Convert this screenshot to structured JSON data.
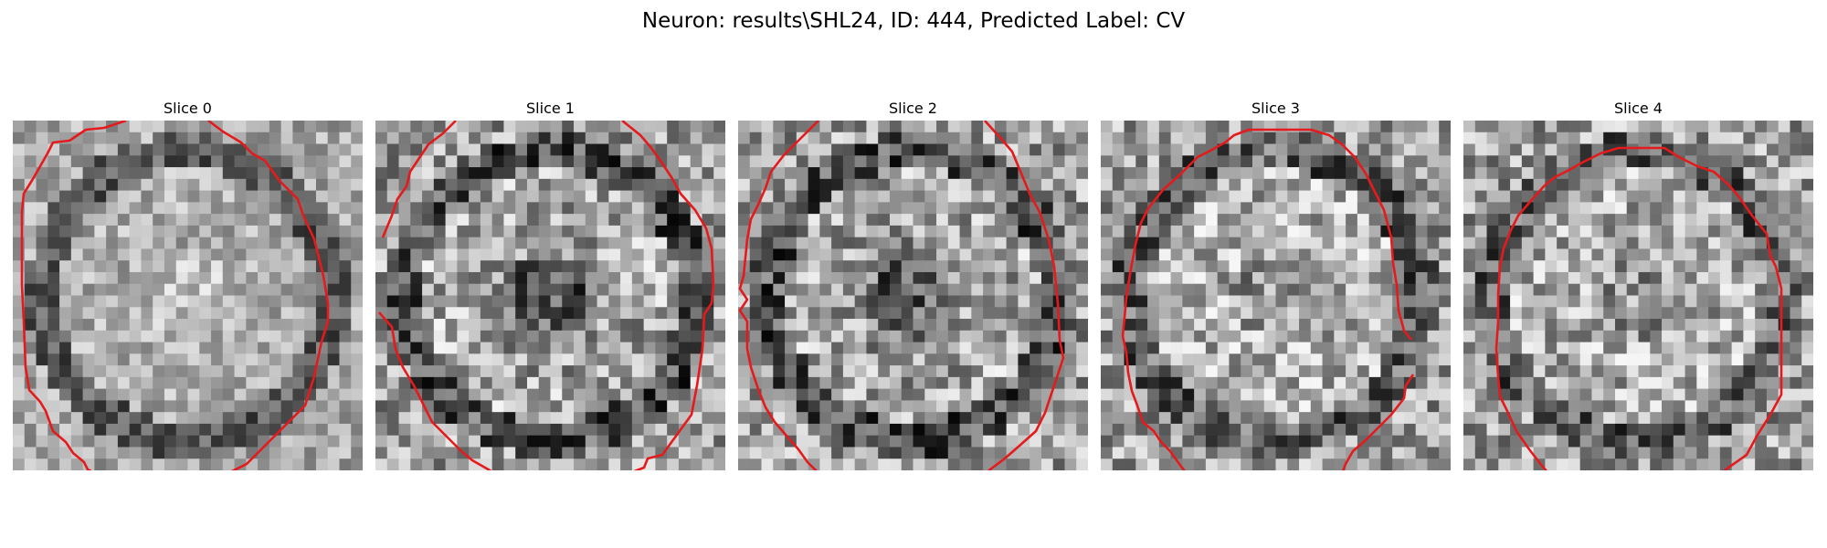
{
  "figure": {
    "title": "Neuron: results\\SHL24, ID: 444, Predicted Label: CV",
    "contour_color": "#e41a1c",
    "colormap": "gray"
  },
  "panels": [
    {
      "title": "Slice 0",
      "center": "bright"
    },
    {
      "title": "Slice 1",
      "center": "dark"
    },
    {
      "title": "Slice 2",
      "center": "dark"
    },
    {
      "title": "Slice 3",
      "center": "mid"
    },
    {
      "title": "Slice 4",
      "center": "mid"
    }
  ]
}
